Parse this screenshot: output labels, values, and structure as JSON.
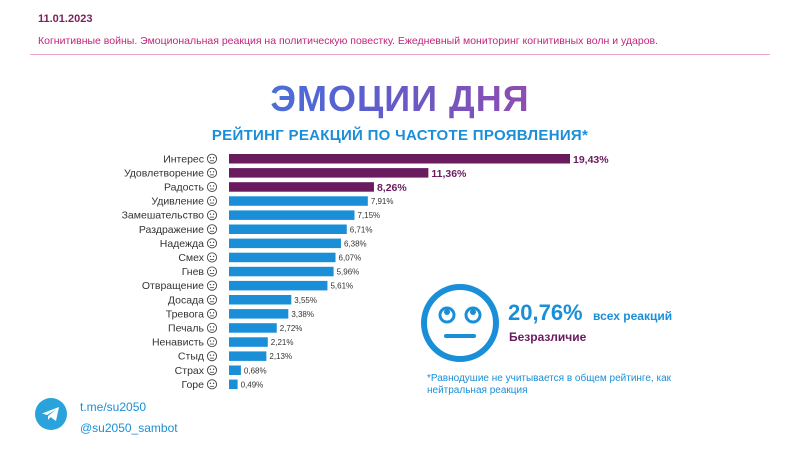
{
  "header": {
    "date": "11.01.2023",
    "subtitle": "Когнитивные войны. Эмоциональная реакция на политическую повестку. Ежедневный мониторинг когнитивных волн и ударов."
  },
  "main_title": "ЭМОЦИИ ДНЯ",
  "chart_data": {
    "type": "bar",
    "orientation": "horizontal",
    "title": "РЕЙТИНГ РЕАКЦИЙ ПО ЧАСТОТЕ ПРОЯВЛЕНИЯ*",
    "categories": [
      "Интерес",
      "Удовлетворение",
      "Радость",
      "Удивление",
      "Замешательство",
      "Раздражение",
      "Надежда",
      "Смех",
      "Гнев",
      "Отвращение",
      "Досада",
      "Тревога",
      "Печаль",
      "Ненависть",
      "Стыд",
      "Страх",
      "Горе"
    ],
    "values": [
      19.43,
      11.36,
      8.26,
      7.91,
      7.15,
      6.71,
      6.38,
      6.07,
      5.96,
      5.61,
      3.55,
      3.38,
      2.72,
      2.21,
      2.13,
      0.68,
      0.49
    ],
    "value_labels": [
      "19,43%",
      "11,36%",
      "8,26%",
      "7,91%",
      "7,15%",
      "6,71%",
      "6,38%",
      "6,07%",
      "5,96%",
      "5,61%",
      "3,55%",
      "3,38%",
      "2,72%",
      "2,21%",
      "2,13%",
      "0,68%",
      "0,49%"
    ],
    "bar_colors": [
      "#6a1b5e",
      "#6a1b5e",
      "#6a1b5e",
      "#1a8fd8",
      "#1a8fd8",
      "#1a8fd8",
      "#1a8fd8",
      "#1a8fd8",
      "#1a8fd8",
      "#1a8fd8",
      "#1a8fd8",
      "#1a8fd8",
      "#1a8fd8",
      "#1a8fd8",
      "#1a8fd8",
      "#1a8fd8",
      "#1a8fd8"
    ],
    "grid": false,
    "legend": "none"
  },
  "indifference": {
    "value": "20,76%",
    "suffix": "всех реакций",
    "label": "Безразличие",
    "color": "#1a8fd8",
    "icon": "neutral-face-icon"
  },
  "footnote": "*Равнодушие не учитывается в общем рейтинге, как нейтральная реакция",
  "contacts": {
    "icon": "telegram-icon",
    "link": "t.me/su2050",
    "bot": "@su2050_sambot"
  }
}
